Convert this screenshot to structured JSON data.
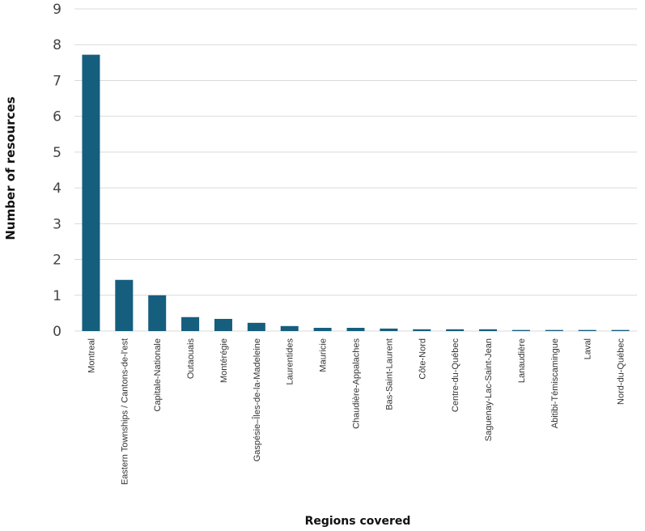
{
  "chart_data": {
    "type": "bar",
    "xlabel": "Regions covered",
    "ylabel": "Number of resources",
    "ylim": [
      0,
      9
    ],
    "yticks": [
      0,
      1,
      2,
      3,
      4,
      5,
      6,
      7,
      8,
      9
    ],
    "grid": true,
    "bar_color": "#155e7e",
    "categories": [
      "Montreal",
      "Eastern Townships / Cantons-de-l'est",
      "Capitale-Nationale",
      "Outaouais",
      "Montérégie",
      "Gaspésie–Îles-de-la-Madeleine",
      "Laurentides",
      "Mauricie",
      "Chaudière-Appalaches",
      "Bas-Saint-Laurent",
      "Côte-Nord",
      "Centre-du-Québec",
      "Saguenay-Lac-Saint-Jean",
      "Lanaudière",
      "Abitibi-Témiscamingue",
      "Laval",
      "Nord-du-Québec"
    ],
    "values": [
      7.72,
      1.43,
      1.0,
      0.39,
      0.34,
      0.23,
      0.14,
      0.09,
      0.09,
      0.07,
      0.05,
      0.05,
      0.05,
      0.03,
      0.03,
      0.03,
      0.03
    ]
  }
}
